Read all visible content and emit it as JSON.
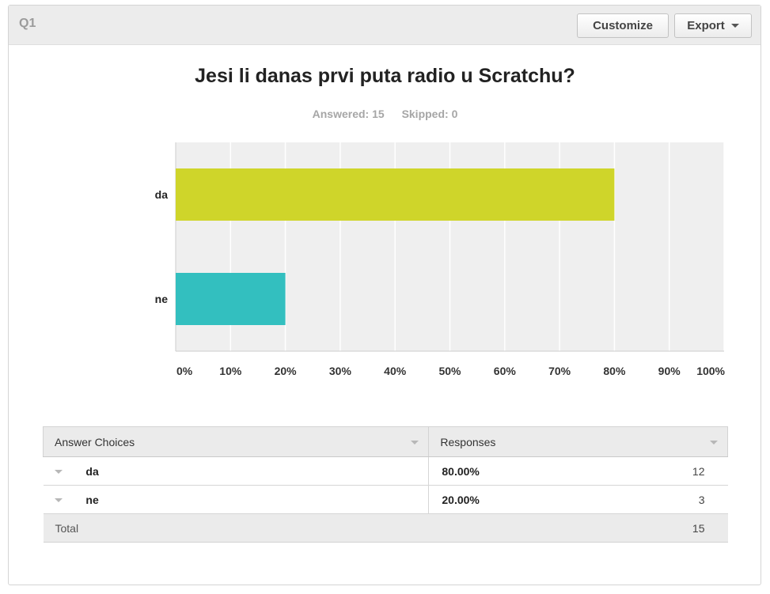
{
  "header": {
    "question_label": "Q1",
    "customize_label": "Customize",
    "export_label": "Export"
  },
  "question": {
    "title": "Jesi li danas prvi puta radio u Scratchu?",
    "answered": "Answered: 15",
    "skipped": "Skipped: 0"
  },
  "chart_data": {
    "type": "bar",
    "orientation": "horizontal",
    "title": "Jesi li danas prvi puta radio u Scratchu?",
    "categories": [
      "da",
      "ne"
    ],
    "values": [
      80,
      20
    ],
    "colors": [
      "#cfd52a",
      "#33bfbf"
    ],
    "xlim": [
      0,
      100
    ],
    "x_ticks": [
      "0%",
      "10%",
      "20%",
      "30%",
      "40%",
      "50%",
      "60%",
      "70%",
      "80%",
      "90%",
      "100%"
    ],
    "grid": true,
    "xlabel": "",
    "ylabel": ""
  },
  "table": {
    "headers": [
      "Answer Choices",
      "Responses"
    ],
    "rows": [
      {
        "choice": "da",
        "percent": "80.00%",
        "count": "12"
      },
      {
        "choice": "ne",
        "percent": "20.00%",
        "count": "3"
      }
    ],
    "total_label": "Total",
    "total_count": "15"
  },
  "theme": {
    "plot_bg": "#efefef",
    "grid_color": "#ffffff",
    "axis_color": "#cccccc"
  }
}
